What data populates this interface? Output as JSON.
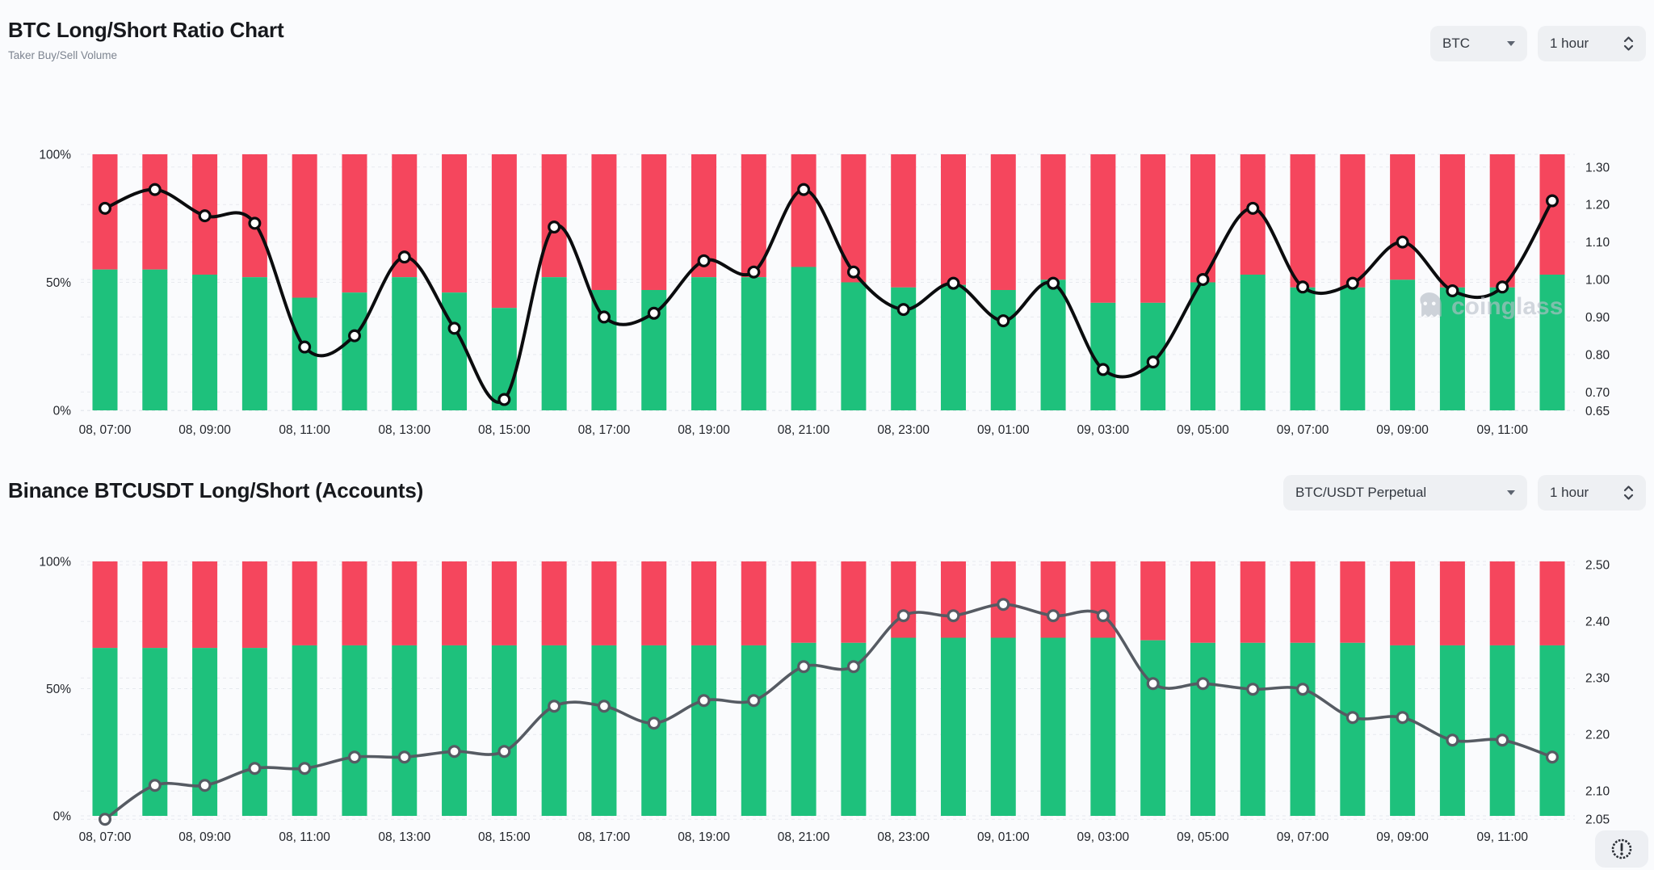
{
  "watermark": {
    "text": "coinglass"
  },
  "colors": {
    "long_green": "#1ec17c",
    "short_red": "#f5465d",
    "line_dark": "#0b0c0e",
    "line_gray": "#565b63",
    "grid": "#e7eaef",
    "tick_text": "#23262c",
    "page_bg": "#fafbfd",
    "button_bg": "#eef0f3"
  },
  "charts": [
    {
      "title": "BTC Long/Short Ratio Chart",
      "subtitle": "Taker Buy/Sell Volume",
      "controls": {
        "symbol": {
          "label": "BTC"
        },
        "interval": {
          "label": "1 hour"
        }
      },
      "chart_data": {
        "type": "bar",
        "overlay": "line",
        "stacked_percent": true,
        "n_points": 30,
        "x_tick_labels": [
          "08, 07:00",
          "08, 09:00",
          "08, 11:00",
          "08, 13:00",
          "08, 15:00",
          "08, 17:00",
          "08, 19:00",
          "08, 21:00",
          "08, 23:00",
          "09, 01:00",
          "09, 03:00",
          "09, 05:00",
          "09, 07:00",
          "09, 09:00",
          "09, 11:00"
        ],
        "bars_per_label": 2,
        "left_axis": {
          "ticks": [
            "100%",
            "50%",
            "0%"
          ],
          "range": [
            0,
            100
          ]
        },
        "right_axis": {
          "ticks": [
            "1.30",
            "1.20",
            "1.10",
            "1.00",
            "0.90",
            "0.80",
            "0.70",
            "0.65"
          ],
          "range": [
            0.651,
            1.334
          ]
        },
        "series": [
          {
            "name": "taker-buy-ratio",
            "type": "bar",
            "color": "#1ec17c",
            "values": [
              55,
              55,
              53,
              52,
              44,
              46,
              52,
              46,
              40,
              52,
              47,
              47,
              52,
              52,
              56,
              50,
              48,
              49,
              47,
              51,
              42,
              42,
              50,
              53,
              48,
              48,
              51,
              48,
              48,
              53
            ]
          },
          {
            "name": "taker-sell-ratio",
            "type": "bar",
            "color": "#f5465d",
            "values": [
              45,
              45,
              47,
              48,
              56,
              54,
              48,
              54,
              60,
              48,
              53,
              53,
              48,
              48,
              44,
              50,
              52,
              51,
              53,
              49,
              58,
              58,
              50,
              47,
              52,
              52,
              49,
              52,
              52,
              47
            ]
          },
          {
            "name": "buy-sell-ratio-line",
            "type": "line",
            "axis": "right",
            "color": "#0b0c0e",
            "values": [
              1.19,
              1.24,
              1.17,
              1.15,
              0.82,
              0.85,
              1.06,
              0.87,
              0.68,
              1.14,
              0.9,
              0.91,
              1.05,
              1.02,
              1.24,
              1.02,
              0.92,
              0.99,
              0.89,
              0.99,
              0.76,
              0.78,
              1.0,
              1.19,
              0.98,
              0.99,
              1.1,
              0.97,
              0.98,
              1.21
            ]
          }
        ]
      }
    },
    {
      "title": "Binance BTCUSDT Long/Short (Accounts)",
      "subtitle": "",
      "controls": {
        "symbol": {
          "label": "BTC/USDT Perpetual"
        },
        "interval": {
          "label": "1 hour"
        }
      },
      "chart_data": {
        "type": "bar",
        "overlay": "line",
        "stacked_percent": true,
        "n_points": 30,
        "x_tick_labels": [
          "08, 07:00",
          "08, 09:00",
          "08, 11:00",
          "08, 13:00",
          "08, 15:00",
          "08, 17:00",
          "08, 19:00",
          "08, 21:00",
          "08, 23:00",
          "09, 01:00",
          "09, 03:00",
          "09, 05:00",
          "09, 07:00",
          "09, 09:00",
          "09, 11:00"
        ],
        "bars_per_label": 2,
        "left_axis": {
          "ticks": [
            "100%",
            "50%",
            "0%"
          ],
          "range": [
            0,
            100
          ]
        },
        "right_axis": {
          "ticks": [
            "2.50",
            "2.40",
            "2.30",
            "2.20",
            "2.10",
            "2.05"
          ],
          "range": [
            2.056,
            2.506
          ]
        },
        "series": [
          {
            "name": "long-accounts-ratio",
            "type": "bar",
            "color": "#1ec17c",
            "values": [
              66,
              66,
              66,
              66,
              67,
              67,
              67,
              67,
              67,
              67,
              67,
              67,
              67,
              67,
              68,
              68,
              70,
              70,
              70,
              70,
              70,
              69,
              68,
              68,
              68,
              68,
              67,
              67,
              67,
              67
            ]
          },
          {
            "name": "short-accounts-ratio",
            "type": "bar",
            "color": "#f5465d",
            "values": [
              34,
              34,
              34,
              34,
              33,
              33,
              33,
              33,
              33,
              33,
              33,
              33,
              33,
              33,
              32,
              32,
              30,
              30,
              30,
              30,
              30,
              31,
              32,
              32,
              32,
              32,
              33,
              33,
              33,
              33
            ]
          },
          {
            "name": "long-short-ratio-line",
            "type": "line",
            "axis": "right",
            "color": "#565b63",
            "values": [
              2.05,
              2.11,
              2.11,
              2.14,
              2.14,
              2.16,
              2.16,
              2.17,
              2.17,
              2.25,
              2.25,
              2.22,
              2.26,
              2.26,
              2.32,
              2.32,
              2.41,
              2.41,
              2.43,
              2.41,
              2.41,
              2.29,
              2.29,
              2.28,
              2.28,
              2.23,
              2.23,
              2.19,
              2.19,
              2.16
            ]
          }
        ]
      }
    }
  ]
}
